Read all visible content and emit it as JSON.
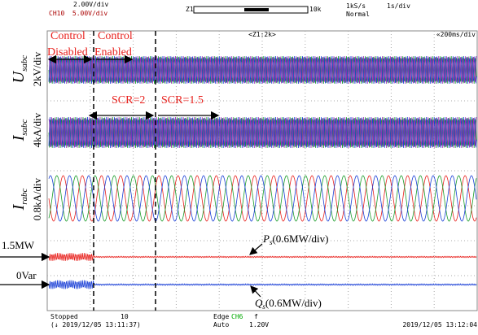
{
  "header": {
    "ch_scale": "2.00V/div",
    "ch10_scale": "CH10  5.00V/div",
    "zoom_left": "Z1",
    "zoom_right": "10k",
    "sample_rate": "1kS/s",
    "time_div": "1s/div",
    "trigger_mode": "Normal"
  },
  "screen": {
    "zoom": "<Z1:2k>",
    "time_div": "«200ms/div"
  },
  "annotations": {
    "control_disabled_1": "Control",
    "control_disabled_2": "Disabled",
    "control_enabled_1": "Control",
    "control_enabled_2": "Enabled",
    "scr_before": "SCR=2",
    "scr_after": "SCR=1.5",
    "p_ref": "1.5MW",
    "q_ref": "0Var",
    "p_symbol": "P",
    "p_subscript": "s",
    "p_scale": "(0.6MW/div)",
    "q_symbol": "Q",
    "q_subscript": "s",
    "q_scale": "(0.6MW/div)"
  },
  "channel_labels": [
    {
      "symbol": "U",
      "subscript": "sabc",
      "scale": "2kV/div"
    },
    {
      "symbol": "I",
      "subscript": "sabc",
      "scale": "4kA/div"
    },
    {
      "symbol": "I",
      "subscript": "rabc",
      "scale": "0.8kA/div"
    }
  ],
  "footer": {
    "status": "Stopped",
    "start_time": "(↓ 2019/12/05 13:11:37)",
    "record": "10",
    "trigger": "Edge",
    "trigger_channel": "CH6",
    "trigger_symbol": "f",
    "mode": "Auto",
    "level": "1.20V",
    "end_time": "2019/12/05 13:12:04"
  }
}
